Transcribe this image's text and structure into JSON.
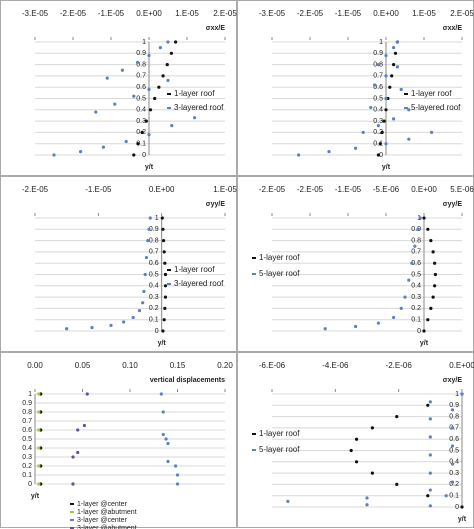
{
  "chart_data": [
    {
      "type": "scatter",
      "title": "σxx/E",
      "y_label": "y/t",
      "legend": "right",
      "xlim": [
        -3e-05,
        2e-05
      ],
      "xticks": [
        {
          "value": -3e-05,
          "label": "-3.E-05"
        },
        {
          "value": -2e-05,
          "label": "-2.E-05"
        },
        {
          "value": -1e-05,
          "label": "-1.E-05"
        },
        {
          "value": 0,
          "label": "0.E+00"
        },
        {
          "value": 1e-05,
          "label": "1.E-05"
        },
        {
          "value": 2e-05,
          "label": "2.E-05"
        }
      ],
      "ylim": [
        0,
        1
      ],
      "yticks": [
        0,
        0.1,
        0.2,
        0.3,
        0.4,
        0.5,
        0.6,
        0.7,
        0.8,
        0.9,
        1
      ],
      "series": [
        {
          "name": "1-layer roof",
          "color": "#111111",
          "x": [
            -4e-06,
            -2.9e-06,
            -1.8e-06,
            -7e-07,
            4e-07,
            1.5e-06,
            2.6e-06,
            3.7e-06,
            4.8e-06,
            5.9e-06,
            7e-06
          ],
          "values": [
            0,
            0.1,
            0.2,
            0.3,
            0.4,
            0.5,
            0.6,
            0.7,
            0.8,
            0.9,
            1
          ]
        },
        {
          "name": "3-layered roof",
          "color": "#5b82c0",
          "x": [
            -2.5e-05,
            -1.8e-05,
            -1.2e-05,
            -6e-06,
            0,
            6e-06,
            1.2e-05,
            -1.4e-05,
            -9e-06,
            -4e-06,
            0,
            5e-06,
            -1.1e-05,
            -7e-06,
            -3e-06,
            0,
            3e-06,
            5e-06
          ],
          "values": [
            0,
            0.03,
            0.07,
            0.12,
            0.18,
            0.26,
            0.33,
            0.38,
            0.45,
            0.52,
            0.58,
            0.66,
            0.68,
            0.75,
            0.82,
            0.88,
            0.95,
            1
          ]
        }
      ]
    },
    {
      "type": "scatter",
      "title": "σxx/E",
      "y_label": "y/t",
      "legend": "right",
      "xlim": [
        -3e-05,
        2e-05
      ],
      "xticks": [
        {
          "value": -3e-05,
          "label": "-3.E-05"
        },
        {
          "value": -2e-05,
          "label": "-2.E-05"
        },
        {
          "value": -1e-05,
          "label": "-1.E-05"
        },
        {
          "value": 0,
          "label": "0.E+00"
        },
        {
          "value": 1e-05,
          "label": "1.E-05"
        },
        {
          "value": 2e-05,
          "label": "2.E-05"
        }
      ],
      "ylim": [
        0,
        1
      ],
      "yticks": [
        0,
        0.1,
        0.2,
        0.3,
        0.4,
        0.5,
        0.6,
        0.7,
        0.8,
        0.9,
        1
      ],
      "series": [
        {
          "name": "1-layer roof",
          "color": "#111111",
          "x": [
            -2e-06,
            -1.5e-06,
            -1e-06,
            -5e-07,
            0,
            5e-07,
            1e-06,
            1.5e-06,
            2e-06,
            2.5e-06,
            3e-06
          ],
          "values": [
            0,
            0.1,
            0.2,
            0.3,
            0.4,
            0.5,
            0.6,
            0.7,
            0.8,
            0.9,
            1
          ]
        },
        {
          "name": "5-layered roof",
          "color": "#5b82c0",
          "x": [
            -2.3e-05,
            -1.5e-05,
            -8e-06,
            0,
            6e-06,
            1.2e-05,
            -6e-06,
            -2e-06,
            2e-06,
            6e-06,
            -4e-06,
            0,
            4e-06,
            -3e-06,
            0,
            3e-06,
            -2e-06,
            0,
            2e-06,
            3e-06
          ],
          "values": [
            0,
            0.03,
            0.06,
            0.1,
            0.14,
            0.2,
            0.2,
            0.26,
            0.32,
            0.4,
            0.42,
            0.5,
            0.58,
            0.62,
            0.7,
            0.78,
            0.8,
            0.88,
            0.95,
            1
          ]
        }
      ]
    },
    {
      "type": "scatter",
      "title": "σyy/E",
      "y_label": "y/t",
      "legend": "right",
      "xlim": [
        -2e-05,
        1e-05
      ],
      "xticks": [
        {
          "value": -2e-05,
          "label": "-2.E-05"
        },
        {
          "value": -1e-05,
          "label": "-1.E-05"
        },
        {
          "value": 0,
          "label": "0.E+00"
        },
        {
          "value": 1e-05,
          "label": "1.E-05"
        }
      ],
      "ylim": [
        0,
        1
      ],
      "yticks": [
        0,
        0.1,
        0.2,
        0.3,
        0.4,
        0.5,
        0.6,
        0.7,
        0.8,
        0.9,
        1
      ],
      "series": [
        {
          "name": "1-layer roof",
          "color": "#111111",
          "x": [
            2e-07,
            4e-07,
            5e-07,
            6e-07,
            6e-07,
            6e-07,
            5e-07,
            4e-07,
            3e-07,
            2e-07,
            1e-07
          ],
          "values": [
            0,
            0.1,
            0.2,
            0.3,
            0.4,
            0.5,
            0.6,
            0.7,
            0.8,
            0.9,
            1
          ]
        },
        {
          "name": "3-layered roof",
          "color": "#5b82c0",
          "x": [
            -1.5e-05,
            -1.1e-05,
            -8e-06,
            -6e-06,
            -4.5e-06,
            -3.5e-06,
            -3e-06,
            -2.8e-06,
            -2.6e-06,
            -2.4e-06,
            -2.2e-06,
            -2e-06,
            -1.8e-06
          ],
          "values": [
            0.02,
            0.03,
            0.05,
            0.08,
            0.12,
            0.18,
            0.25,
            0.35,
            0.5,
            0.65,
            0.8,
            0.9,
            1
          ]
        }
      ]
    },
    {
      "type": "scatter",
      "title": "σyy/E",
      "y_label": "y/t",
      "legend": "left",
      "xlim": [
        -2e-05,
        5e-06
      ],
      "xticks": [
        {
          "value": -2e-05,
          "label": "-2.E-05"
        },
        {
          "value": -1.5e-05,
          "label": "-2.E-05"
        },
        {
          "value": -1e-05,
          "label": "-1.E-05"
        },
        {
          "value": -5e-06,
          "label": "-5.E-06"
        },
        {
          "value": 0,
          "label": "0.E+00"
        },
        {
          "value": 5e-06,
          "label": "5.E-06"
        }
      ],
      "ylim": [
        0,
        1
      ],
      "yticks": [
        0,
        0.1,
        0.2,
        0.3,
        0.4,
        0.5,
        0.6,
        0.7,
        0.8,
        0.9,
        1
      ],
      "series": [
        {
          "name": "1-layer roof",
          "color": "#111111",
          "x": [
            0,
            5e-07,
            9e-07,
            1.2e-06,
            1.4e-06,
            1.5e-06,
            1.4e-06,
            1.2e-06,
            9e-07,
            5e-07,
            0
          ],
          "values": [
            0,
            0.1,
            0.2,
            0.3,
            0.4,
            0.5,
            0.6,
            0.7,
            0.8,
            0.9,
            1
          ]
        },
        {
          "name": "5-layer roof",
          "color": "#5b82c0",
          "x": [
            -1.3e-05,
            -9e-06,
            -6e-06,
            -4e-06,
            -3e-06,
            -2.5e-06,
            -2e-06,
            -1.6e-06,
            -1.2e-06,
            -8e-07,
            -5e-07
          ],
          "values": [
            0.02,
            0.04,
            0.07,
            0.12,
            0.2,
            0.3,
            0.45,
            0.6,
            0.75,
            0.9,
            1
          ]
        }
      ]
    },
    {
      "type": "scatter",
      "title": "vertical displacements",
      "y_label": "y/t",
      "legend": "bottom",
      "xlim": [
        0,
        0.2
      ],
      "xticks": [
        {
          "value": 0,
          "label": "0.00"
        },
        {
          "value": 0.05,
          "label": "0.05"
        },
        {
          "value": 0.1,
          "label": "0.10"
        },
        {
          "value": 0.15,
          "label": "0.15"
        },
        {
          "value": 0.2,
          "label": "0.20"
        }
      ],
      "ylim": [
        0,
        1
      ],
      "yticks": [
        0,
        0.1,
        0.2,
        0.3,
        0.4,
        0.5,
        0.6,
        0.7,
        0.8,
        0.9,
        1
      ],
      "series": [
        {
          "name": "1-layer @center",
          "color": "#111111",
          "x": [
            0.006,
            0.006,
            0.006,
            0.006,
            0.006,
            0.006
          ],
          "values": [
            0,
            0.2,
            0.4,
            0.6,
            0.8,
            1
          ]
        },
        {
          "name": "1-layer @abutment",
          "color": "#9acd32",
          "x": [
            0.004,
            0.004,
            0.004,
            0.004,
            0.004,
            0.004
          ],
          "values": [
            0,
            0.2,
            0.4,
            0.6,
            0.8,
            1
          ]
        },
        {
          "name": "3-layer @center",
          "color": "#5b82c0",
          "x": [
            0.15,
            0.15,
            0.148,
            0.14,
            0.14,
            0.138,
            0.135,
            0.135,
            0.133
          ],
          "values": [
            0,
            0.1,
            0.2,
            0.25,
            0.45,
            0.5,
            0.55,
            0.8,
            1
          ]
        },
        {
          "name": "3-layer @abutment",
          "color": "#6a4c9c",
          "x": [
            0.04,
            0.04,
            0.045,
            0.045,
            0.052,
            0.055
          ],
          "values": [
            0,
            0.3,
            0.35,
            0.6,
            0.65,
            1
          ]
        }
      ]
    },
    {
      "type": "scatter",
      "title": "σxy/E",
      "y_label": "y/t",
      "legend": "left",
      "xlim": [
        -6e-06,
        0
      ],
      "xticks": [
        {
          "value": -6e-06,
          "label": "-6.E-06"
        },
        {
          "value": -4e-06,
          "label": "-4.E-06"
        },
        {
          "value": -2e-06,
          "label": "-2.E-06"
        },
        {
          "value": 0,
          "label": "0.E+00"
        }
      ],
      "ylim": [
        0,
        1
      ],
      "yticks": [
        0,
        0.1,
        0.2,
        0.3,
        0.4,
        0.5,
        0.6,
        0.7,
        0.8,
        0.9,
        1
      ],
      "series": [
        {
          "name": "1-layer roof",
          "color": "#111111",
          "x": [
            0,
            -1.08e-06,
            -2.06e-06,
            -2.83e-06,
            -3.33e-06,
            -3.5e-06,
            -3.33e-06,
            -2.83e-06,
            -2.06e-06,
            -1.08e-06,
            0
          ],
          "values": [
            0,
            0.1,
            0.2,
            0.3,
            0.4,
            0.5,
            0.6,
            0.7,
            0.8,
            0.9,
            1
          ]
        },
        {
          "name": "5-layer roof",
          "color": "#5b82c0",
          "x": [
            0,
            -1e-06,
            -3e-07,
            -1e-06,
            -3e-07,
            -1e-06,
            -3e-07,
            -1e-06,
            -3e-07,
            -1e-06,
            -3e-07,
            -1e-06,
            -5e-07,
            -3e-06,
            -5.5e-06,
            -3e-06,
            -1e-06
          ],
          "values": [
            1,
            0.93,
            0.86,
            0.78,
            0.7,
            0.62,
            0.54,
            0.46,
            0.38,
            0.3,
            0.22,
            0.15,
            0.1,
            0.08,
            0.05,
            0.02,
            0.01
          ]
        }
      ]
    }
  ]
}
